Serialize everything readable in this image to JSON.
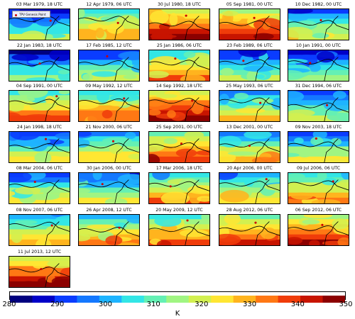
{
  "panels": [
    {
      "title": "03 Mar 1979, 18 UTC",
      "mean": 300
    },
    {
      "title": "12 Apr 1979, 06 UTC",
      "mean": 318
    },
    {
      "title": "30 Jul 1980, 18 UTC",
      "mean": 333
    },
    {
      "title": "05 Sep 1981, 00 UTC",
      "mean": 330
    },
    {
      "title": "10 Dec 1982, 00 UTC",
      "mean": 306
    },
    {
      "title": "22 Jan 1983, 18 UTC",
      "mean": 298
    },
    {
      "title": "17 Feb 1985, 12 UTC",
      "mean": 303
    },
    {
      "title": "25 Jan 1986, 06 UTC",
      "mean": 318
    },
    {
      "title": "23 Feb 1989, 06 UTC",
      "mean": 303
    },
    {
      "title": "10 Jan 1991, 00 UTC",
      "mean": 302
    },
    {
      "title": "04 Sep 1991, 00 UTC",
      "mean": 322
    },
    {
      "title": "09 May 1992, 12 UTC",
      "mean": 320
    },
    {
      "title": "14 Sep 1992, 18 UTC",
      "mean": 334
    },
    {
      "title": "25 May 1993, 06 UTC",
      "mean": 312
    },
    {
      "title": "31 Dec 1994, 06 UTC",
      "mean": 304
    },
    {
      "title": "24 Jan 1998, 18 UTC",
      "mean": 306
    },
    {
      "title": "21 Nov 2000, 06 UTC",
      "mean": 312
    },
    {
      "title": "25 Sep 2001, 00 UTC",
      "mean": 326
    },
    {
      "title": "13 Dec 2001, 00 UTC",
      "mean": 312
    },
    {
      "title": "09 Nov 2003, 18 UTC",
      "mean": 307
    },
    {
      "title": "08 Mar 2004, 06 UTC",
      "mean": 308
    },
    {
      "title": "30 Jan 2006, 00 UTC",
      "mean": 306
    },
    {
      "title": "17 Mar 2006, 18 UTC",
      "mean": 318
    },
    {
      "title": "20 Apr 2006, 00 UTC",
      "mean": 313
    },
    {
      "title": "09 Jul 2006, 06 UTC",
      "mean": 318
    },
    {
      "title": "08 Nov 2007, 06 UTC",
      "mean": 314
    },
    {
      "title": "26 Apr 2008, 12 UTC",
      "mean": 318
    },
    {
      "title": "20 May 2009, 12 UTC",
      "mean": 322
    },
    {
      "title": "28 Aug 2012, 06 UTC",
      "mean": 326
    },
    {
      "title": "06 Sep 2012, 06 UTC",
      "mean": 328
    },
    {
      "title": "11 Jul 2013, 12 UTC",
      "mean": 333
    }
  ],
  "legend_label": "TPV Genesis Point",
  "colorbar": {
    "min": 280,
    "max": 350,
    "ticks": [
      "280",
      "290",
      "300",
      "310",
      "320",
      "330",
      "340",
      "350"
    ],
    "unit": "K",
    "colors": [
      "#00007f",
      "#0000c8",
      "#0a3cff",
      "#1478ff",
      "#1eb4ff",
      "#32e6e6",
      "#64f0b4",
      "#a0f582",
      "#d2f050",
      "#ffe633",
      "#ffb41e",
      "#ff7814",
      "#f03c0a",
      "#c81400",
      "#8c0000"
    ]
  },
  "chart_data": {
    "type": "heatmap",
    "colorbar_range": [
      280,
      350
    ],
    "colorbar_ticks": [
      280,
      290,
      300,
      310,
      320,
      330,
      340,
      350
    ],
    "colorbar_unit": "K",
    "legend": "TPV Genesis Point",
    "panel_titles": [
      "03 Mar 1979, 18 UTC",
      "12 Apr 1979, 06 UTC",
      "30 Jul 1980, 18 UTC",
      "05 Sep 1981, 00 UTC",
      "10 Dec 1982, 00 UTC",
      "22 Jan 1983, 18 UTC",
      "17 Feb 1985, 12 UTC",
      "25 Jan 1986, 06 UTC",
      "23 Feb 1989, 06 UTC",
      "10 Jan 1991, 00 UTC",
      "04 Sep 1991, 00 UTC",
      "09 May 1992, 12 UTC",
      "14 Sep 1992, 18 UTC",
      "25 May 1993, 06 UTC",
      "31 Dec 1994, 06 UTC",
      "24 Jan 1998, 18 UTC",
      "21 Nov 2000, 06 UTC",
      "25 Sep 2001, 00 UTC",
      "13 Dec 2001, 00 UTC",
      "09 Nov 2003, 18 UTC",
      "08 Mar 2004, 06 UTC",
      "30 Jan 2006, 00 UTC",
      "17 Mar 2006, 18 UTC",
      "20 Apr 2006, 00 UTC",
      "09 Jul 2006, 06 UTC",
      "08 Nov 2007, 06 UTC",
      "26 Apr 2008, 12 UTC",
      "20 May 2009, 12 UTC",
      "28 Aug 2012, 06 UTC",
      "06 Sep 2012, 06 UTC",
      "11 Jul 2013, 12 UTC"
    ]
  }
}
